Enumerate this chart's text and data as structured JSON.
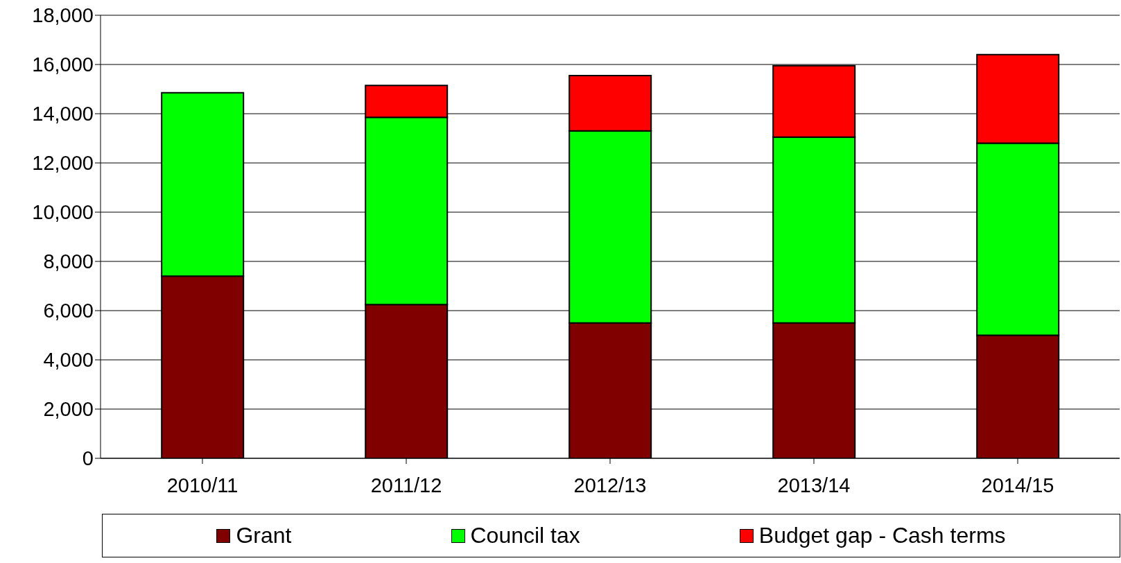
{
  "chart_data": {
    "type": "bar",
    "stacked": true,
    "categories": [
      "2010/11",
      "2011/12",
      "2012/13",
      "2013/14",
      "2014/15"
    ],
    "series": [
      {
        "name": "Grant",
        "color": "#800000",
        "values": [
          7400,
          6250,
          5500,
          5500,
          5000
        ]
      },
      {
        "name": "Council tax",
        "color": "#00ff00",
        "values": [
          7450,
          7600,
          7800,
          7550,
          7800
        ]
      },
      {
        "name": "Budget gap - Cash terms",
        "color": "#ff0000",
        "values": [
          null,
          1300,
          2250,
          2900,
          3600
        ]
      }
    ],
    "ylim": [
      0,
      18000
    ],
    "yticks": [
      0,
      {
        "value": 2000,
        "label": "2,000"
      },
      {
        "value": 4000,
        "label": "4,000"
      },
      {
        "value": 6000,
        "label": "6,000"
      },
      {
        "value": 8000,
        "label": "8,000"
      },
      {
        "value": 10000,
        "label": "10,000"
      },
      {
        "value": 12000,
        "label": "12,000"
      },
      {
        "value": 14000,
        "label": "14,000"
      },
      {
        "value": 16000,
        "label": "16,000"
      },
      {
        "value": 18000,
        "label": "18,000"
      }
    ],
    "grid": "y",
    "legend": "bottom"
  }
}
